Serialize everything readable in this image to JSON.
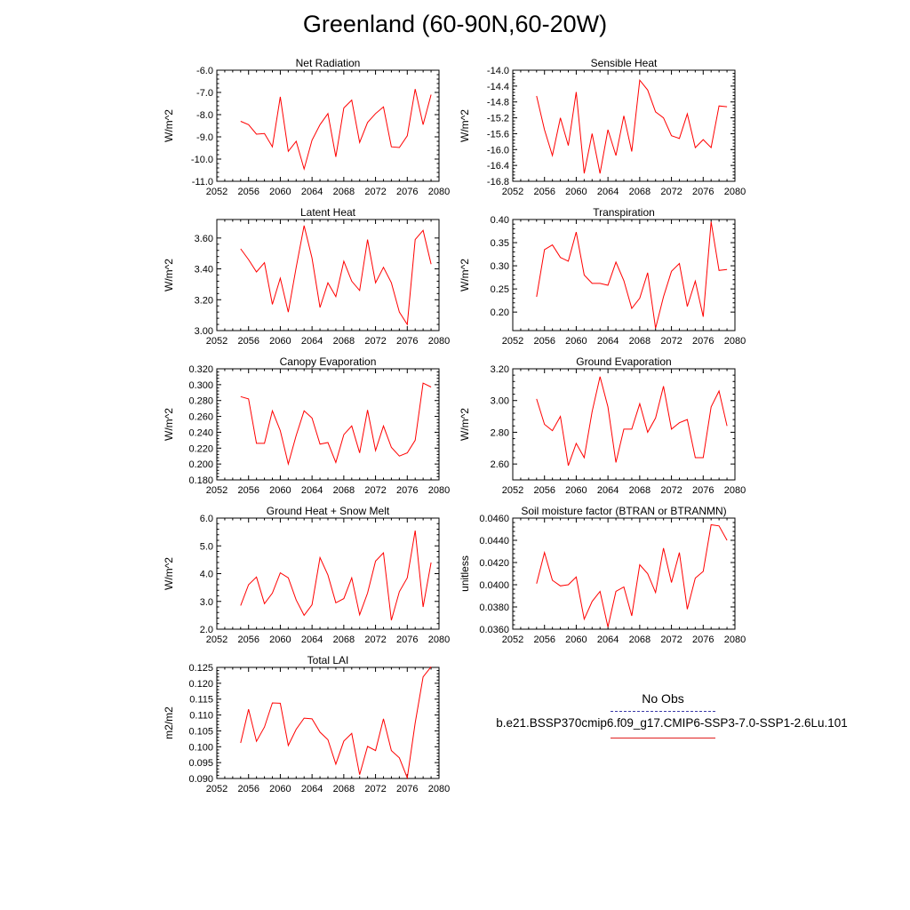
{
  "title": "Greenland (60-90N,60-20W)",
  "colors": {
    "model": "#ff0000",
    "obs": "#3a3aa8",
    "axis": "#000000"
  },
  "legend": {
    "obs_label": "No Obs",
    "model_label": "b.e21.BSSP370cmip6.f09_g17.CMIP6-SSP3-7.0-SSP1-2.6Lu.101"
  },
  "chart_data": [
    {
      "type": "line",
      "title": "Net Radiation",
      "ylabel": "W/m^2",
      "xlabel": "",
      "xlim": [
        2052,
        2080
      ],
      "ylim": [
        -11.0,
        -6.0
      ],
      "xticks": [
        2052,
        2056,
        2060,
        2064,
        2068,
        2072,
        2076,
        2080
      ],
      "yticks": [
        "-11.0",
        "-10.0",
        "-9.0",
        "-8.0",
        "-7.0",
        "-6.0"
      ],
      "yticks_num": [
        -11,
        -10,
        -9,
        -8,
        -7,
        -6
      ],
      "x": [
        2055,
        2056,
        2057,
        2058,
        2059,
        2060,
        2061,
        2062,
        2063,
        2064,
        2065,
        2066,
        2067,
        2068,
        2069,
        2070,
        2071,
        2072,
        2073,
        2074,
        2075,
        2076,
        2077,
        2078,
        2079
      ],
      "series": [
        {
          "values": [
            -8.3,
            -8.45,
            -8.88,
            -8.85,
            -9.45,
            -7.2,
            -9.65,
            -9.2,
            -10.45,
            -9.15,
            -8.45,
            -7.95,
            -9.9,
            -7.7,
            -7.35,
            -9.25,
            -8.35,
            -7.95,
            -7.65,
            -9.45,
            -9.48,
            -8.95,
            -6.85,
            -8.45,
            -7.1
          ]
        }
      ]
    },
    {
      "type": "line",
      "title": "Sensible Heat",
      "ylabel": "W/m^2",
      "xlabel": "",
      "xlim": [
        2052,
        2080
      ],
      "ylim": [
        -16.8,
        -14.0
      ],
      "xticks": [
        2052,
        2056,
        2060,
        2064,
        2068,
        2072,
        2076,
        2080
      ],
      "yticks": [
        "-16.8",
        "-16.4",
        "-16.0",
        "-15.6",
        "-15.2",
        "-14.8",
        "-14.4",
        "-14.0"
      ],
      "yticks_num": [
        -16.8,
        -16.4,
        -16.0,
        -15.6,
        -15.2,
        -14.8,
        -14.4,
        -14.0
      ],
      "x": [
        2055,
        2056,
        2057,
        2058,
        2059,
        2060,
        2061,
        2062,
        2063,
        2064,
        2065,
        2066,
        2067,
        2068,
        2069,
        2070,
        2071,
        2072,
        2073,
        2074,
        2075,
        2076,
        2077,
        2078,
        2079
      ],
      "series": [
        {
          "values": [
            -14.65,
            -15.5,
            -16.15,
            -15.2,
            -15.9,
            -14.55,
            -16.6,
            -15.6,
            -16.6,
            -15.5,
            -16.15,
            -15.15,
            -16.05,
            -14.25,
            -14.5,
            -15.05,
            -15.2,
            -15.65,
            -15.72,
            -15.1,
            -15.95,
            -15.75,
            -15.95,
            -14.9,
            -14.92
          ]
        }
      ]
    },
    {
      "type": "line",
      "title": "Latent Heat",
      "ylabel": "W/m^2",
      "xlabel": "",
      "xlim": [
        2052,
        2080
      ],
      "ylim": [
        3.0,
        3.72
      ],
      "xticks": [
        2052,
        2056,
        2060,
        2064,
        2068,
        2072,
        2076,
        2080
      ],
      "yticks": [
        "3.00",
        "3.20",
        "3.40",
        "3.60"
      ],
      "yticks_num": [
        3.0,
        3.2,
        3.4,
        3.6
      ],
      "x": [
        2055,
        2056,
        2057,
        2058,
        2059,
        2060,
        2061,
        2062,
        2063,
        2064,
        2065,
        2066,
        2067,
        2068,
        2069,
        2070,
        2071,
        2072,
        2073,
        2074,
        2075,
        2076,
        2077,
        2078,
        2079
      ],
      "series": [
        {
          "values": [
            3.53,
            3.46,
            3.38,
            3.44,
            3.17,
            3.34,
            3.12,
            3.41,
            3.68,
            3.47,
            3.15,
            3.31,
            3.22,
            3.45,
            3.32,
            3.26,
            3.59,
            3.31,
            3.41,
            3.31,
            3.12,
            3.04,
            3.59,
            3.65,
            3.43
          ]
        }
      ]
    },
    {
      "type": "line",
      "title": "Transpiration",
      "ylabel": "W/m^2",
      "xlabel": "",
      "xlim": [
        2052,
        2080
      ],
      "ylim": [
        0.16,
        0.4
      ],
      "xticks": [
        2052,
        2056,
        2060,
        2064,
        2068,
        2072,
        2076,
        2080
      ],
      "yticks": [
        "0.20",
        "0.25",
        "0.30",
        "0.35",
        "0.40"
      ],
      "yticks_num": [
        0.2,
        0.25,
        0.3,
        0.35,
        0.4
      ],
      "x": [
        2055,
        2056,
        2057,
        2058,
        2059,
        2060,
        2061,
        2062,
        2063,
        2064,
        2065,
        2066,
        2067,
        2068,
        2069,
        2070,
        2071,
        2072,
        2073,
        2074,
        2075,
        2076,
        2077,
        2078,
        2079
      ],
      "series": [
        {
          "values": [
            0.233,
            0.335,
            0.345,
            0.318,
            0.31,
            0.373,
            0.28,
            0.262,
            0.262,
            0.258,
            0.308,
            0.268,
            0.208,
            0.23,
            0.285,
            0.165,
            0.233,
            0.288,
            0.305,
            0.212,
            0.267,
            0.19,
            0.395,
            0.29,
            0.292
          ]
        }
      ]
    },
    {
      "type": "line",
      "title": "Canopy Evaporation",
      "ylabel": "W/m^2",
      "xlabel": "",
      "xlim": [
        2052,
        2080
      ],
      "ylim": [
        0.18,
        0.32
      ],
      "xticks": [
        2052,
        2056,
        2060,
        2064,
        2068,
        2072,
        2076,
        2080
      ],
      "yticks": [
        "0.180",
        "0.200",
        "0.220",
        "0.240",
        "0.260",
        "0.280",
        "0.300",
        "0.320"
      ],
      "yticks_num": [
        0.18,
        0.2,
        0.22,
        0.24,
        0.26,
        0.28,
        0.3,
        0.32
      ],
      "x": [
        2055,
        2056,
        2057,
        2058,
        2059,
        2060,
        2061,
        2062,
        2063,
        2064,
        2065,
        2066,
        2067,
        2068,
        2069,
        2070,
        2071,
        2072,
        2073,
        2074,
        2075,
        2076,
        2077,
        2078,
        2079
      ],
      "series": [
        {
          "values": [
            0.285,
            0.282,
            0.226,
            0.226,
            0.267,
            0.242,
            0.2,
            0.236,
            0.267,
            0.258,
            0.225,
            0.227,
            0.202,
            0.237,
            0.248,
            0.214,
            0.268,
            0.217,
            0.248,
            0.221,
            0.21,
            0.214,
            0.23,
            0.302,
            0.297
          ]
        }
      ]
    },
    {
      "type": "line",
      "title": "Ground Evaporation",
      "ylabel": "W/m^2",
      "xlabel": "",
      "xlim": [
        2052,
        2080
      ],
      "ylim": [
        2.5,
        3.2
      ],
      "xticks": [
        2052,
        2056,
        2060,
        2064,
        2068,
        2072,
        2076,
        2080
      ],
      "yticks": [
        "2.60",
        "2.80",
        "3.00",
        "3.20"
      ],
      "yticks_num": [
        2.6,
        2.8,
        3.0,
        3.2
      ],
      "x": [
        2055,
        2056,
        2057,
        2058,
        2059,
        2060,
        2061,
        2062,
        2063,
        2064,
        2065,
        2066,
        2067,
        2068,
        2069,
        2070,
        2071,
        2072,
        2073,
        2074,
        2075,
        2076,
        2077,
        2078,
        2079
      ],
      "series": [
        {
          "values": [
            3.01,
            2.85,
            2.81,
            2.9,
            2.59,
            2.73,
            2.64,
            2.93,
            3.15,
            2.96,
            2.61,
            2.82,
            2.82,
            2.98,
            2.8,
            2.89,
            3.09,
            2.82,
            2.86,
            2.88,
            2.64,
            2.64,
            2.96,
            3.06,
            2.84
          ]
        }
      ]
    },
    {
      "type": "line",
      "title": "Ground Heat + Snow Melt",
      "ylabel": "W/m^2",
      "xlabel": "",
      "xlim": [
        2052,
        2080
      ],
      "ylim": [
        2.0,
        6.0
      ],
      "xticks": [
        2052,
        2056,
        2060,
        2064,
        2068,
        2072,
        2076,
        2080
      ],
      "yticks": [
        "2.0",
        "3.0",
        "4.0",
        "5.0",
        "6.0"
      ],
      "yticks_num": [
        2,
        3,
        4,
        5,
        6
      ],
      "x": [
        2055,
        2056,
        2057,
        2058,
        2059,
        2060,
        2061,
        2062,
        2063,
        2064,
        2065,
        2066,
        2067,
        2068,
        2069,
        2070,
        2071,
        2072,
        2073,
        2074,
        2075,
        2076,
        2077,
        2078,
        2079
      ],
      "series": [
        {
          "values": [
            2.85,
            3.6,
            3.88,
            2.92,
            3.3,
            4.03,
            3.85,
            3.05,
            2.5,
            2.88,
            4.58,
            3.95,
            2.95,
            3.1,
            3.85,
            2.52,
            3.3,
            4.45,
            4.75,
            2.32,
            3.35,
            3.85,
            5.55,
            2.8,
            4.4
          ]
        }
      ]
    },
    {
      "type": "line",
      "title": "Soil moisture factor (BTRAN or BTRANMN)",
      "ylabel": "unitless",
      "xlabel": "",
      "xlim": [
        2052,
        2080
      ],
      "ylim": [
        0.036,
        0.046
      ],
      "xticks": [
        2052,
        2056,
        2060,
        2064,
        2068,
        2072,
        2076,
        2080
      ],
      "yticks": [
        "0.0360",
        "0.0380",
        "0.0400",
        "0.0420",
        "0.0440",
        "0.0460"
      ],
      "yticks_num": [
        0.036,
        0.038,
        0.04,
        0.042,
        0.044,
        0.046
      ],
      "x": [
        2055,
        2056,
        2057,
        2058,
        2059,
        2060,
        2061,
        2062,
        2063,
        2064,
        2065,
        2066,
        2067,
        2068,
        2069,
        2070,
        2071,
        2072,
        2073,
        2074,
        2075,
        2076,
        2077,
        2078,
        2079
      ],
      "series": [
        {
          "values": [
            0.0401,
            0.0429,
            0.0404,
            0.0399,
            0.04,
            0.0407,
            0.0369,
            0.0385,
            0.0394,
            0.0362,
            0.0394,
            0.0398,
            0.0372,
            0.0418,
            0.041,
            0.0393,
            0.0433,
            0.0402,
            0.0429,
            0.0378,
            0.0406,
            0.0412,
            0.0454,
            0.0453,
            0.044
          ]
        }
      ]
    },
    {
      "type": "line",
      "title": "Total LAI",
      "ylabel": "m2/m2",
      "xlabel": "",
      "xlim": [
        2052,
        2080
      ],
      "ylim": [
        0.09,
        0.125
      ],
      "xticks": [
        2052,
        2056,
        2060,
        2064,
        2068,
        2072,
        2076,
        2080
      ],
      "yticks": [
        "0.090",
        "0.095",
        "0.100",
        "0.105",
        "0.110",
        "0.115",
        "0.120",
        "0.125"
      ],
      "yticks_num": [
        0.09,
        0.095,
        0.1,
        0.105,
        0.11,
        0.115,
        0.12,
        0.125
      ],
      "x": [
        2055,
        2056,
        2057,
        2058,
        2059,
        2060,
        2061,
        2062,
        2063,
        2064,
        2065,
        2066,
        2067,
        2068,
        2069,
        2070,
        2071,
        2072,
        2073,
        2074,
        2075,
        2076,
        2077,
        2078,
        2079
      ],
      "series": [
        {
          "values": [
            0.1012,
            0.1118,
            0.1017,
            0.1062,
            0.1138,
            0.1137,
            0.1004,
            0.1055,
            0.109,
            0.1088,
            0.1046,
            0.1022,
            0.0945,
            0.1018,
            0.1042,
            0.0912,
            0.1001,
            0.0988,
            0.1088,
            0.0988,
            0.0965,
            0.0902,
            0.1075,
            0.122,
            0.1252
          ]
        }
      ]
    }
  ]
}
